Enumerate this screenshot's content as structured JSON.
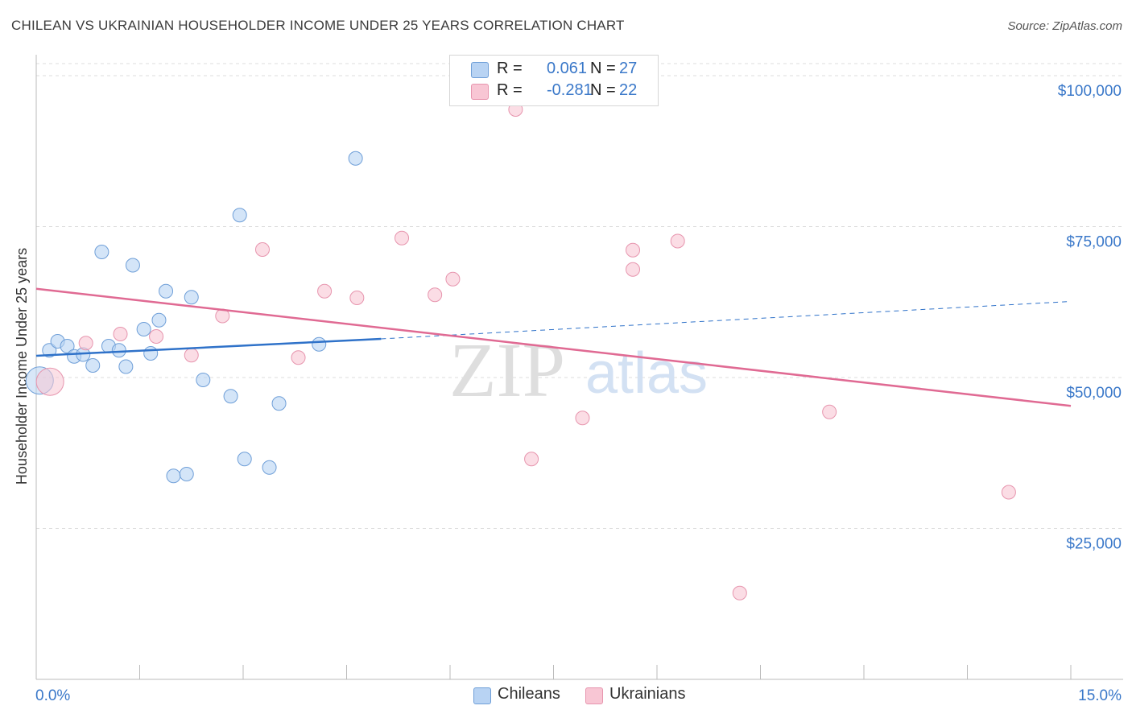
{
  "title": "CHILEAN VS UKRAINIAN HOUSEHOLDER INCOME UNDER 25 YEARS CORRELATION CHART",
  "source": "Source: ZipAtlas.com",
  "legend": {
    "rows": [
      {
        "r_label": "R =",
        "r_value": "0.061",
        "n_label": "N =",
        "n_value": "27"
      },
      {
        "r_label": "R =",
        "r_value": "-0.281",
        "n_label": "N =",
        "n_value": "22"
      }
    ]
  },
  "bottom_legend": {
    "chileans": "Chileans",
    "ukrainians": "Ukrainians"
  },
  "watermark": {
    "zip": "ZIP",
    "atlas": "atlas"
  },
  "colors": {
    "chilean_fill": "#b8d3f3",
    "chilean_stroke": "#6f9fd8",
    "chilean_line": "#2f72c9",
    "ukrainian_fill": "#f8c6d4",
    "ukrainian_stroke": "#e795ae",
    "ukrainian_line": "#e06a93",
    "grid": "#dcdcdc",
    "tick_label": "#3a78c9"
  },
  "chart_data": {
    "type": "scatter",
    "title": "CHILEAN VS UKRAINIAN HOUSEHOLDER INCOME UNDER 25 YEARS CORRELATION CHART",
    "xlabel": "",
    "ylabel": "Householder Income Under 25 years",
    "xlim": [
      0,
      15
    ],
    "ylim": [
      0,
      102000
    ],
    "x_tick_labels": [
      "0.0%",
      "15.0%"
    ],
    "y_ticks": [
      {
        "value": 25000,
        "label": "$25,000"
      },
      {
        "value": 50000,
        "label": "$50,000"
      },
      {
        "value": 75000,
        "label": "$75,000"
      },
      {
        "value": 100000,
        "label": "$100,000"
      }
    ],
    "series": [
      {
        "name": "Chileans",
        "r": 0.061,
        "n": 27,
        "points": [
          {
            "x": 0.05,
            "y": 49500,
            "big": true
          },
          {
            "x": 0.19,
            "y": 54500
          },
          {
            "x": 0.31,
            "y": 56000
          },
          {
            "x": 0.45,
            "y": 55200
          },
          {
            "x": 0.55,
            "y": 53500
          },
          {
            "x": 0.68,
            "y": 53800
          },
          {
            "x": 0.82,
            "y": 52000
          },
          {
            "x": 0.95,
            "y": 70800
          },
          {
            "x": 1.05,
            "y": 55200
          },
          {
            "x": 1.2,
            "y": 54500
          },
          {
            "x": 1.3,
            "y": 51800
          },
          {
            "x": 1.4,
            "y": 68600
          },
          {
            "x": 1.56,
            "y": 58000
          },
          {
            "x": 1.66,
            "y": 54000
          },
          {
            "x": 1.78,
            "y": 59500
          },
          {
            "x": 1.88,
            "y": 64300
          },
          {
            "x": 1.99,
            "y": 33700
          },
          {
            "x": 2.18,
            "y": 34000
          },
          {
            "x": 2.25,
            "y": 63300
          },
          {
            "x": 2.42,
            "y": 49600
          },
          {
            "x": 2.82,
            "y": 46900
          },
          {
            "x": 2.95,
            "y": 76900
          },
          {
            "x": 3.02,
            "y": 36500
          },
          {
            "x": 3.38,
            "y": 35100
          },
          {
            "x": 3.52,
            "y": 45700
          },
          {
            "x": 4.1,
            "y": 55500
          },
          {
            "x": 4.63,
            "y": 86300
          }
        ],
        "trend": {
          "x1": 0,
          "y1": 53600,
          "x2": 5.0,
          "y2": 56400,
          "dash_x2": 15,
          "dash_y2": 62600
        }
      },
      {
        "name": "Ukrainians",
        "r": -0.281,
        "n": 22,
        "points": [
          {
            "x": 0.2,
            "y": 49300,
            "big": true
          },
          {
            "x": 0.72,
            "y": 55700
          },
          {
            "x": 1.22,
            "y": 57200
          },
          {
            "x": 1.74,
            "y": 56800
          },
          {
            "x": 2.25,
            "y": 53700
          },
          {
            "x": 2.7,
            "y": 60200
          },
          {
            "x": 3.28,
            "y": 71200
          },
          {
            "x": 3.8,
            "y": 53300
          },
          {
            "x": 4.18,
            "y": 64300
          },
          {
            "x": 4.65,
            "y": 63200
          },
          {
            "x": 5.3,
            "y": 73100
          },
          {
            "x": 5.78,
            "y": 63700
          },
          {
            "x": 6.04,
            "y": 66300
          },
          {
            "x": 6.95,
            "y": 94400
          },
          {
            "x": 7.18,
            "y": 36500
          },
          {
            "x": 7.92,
            "y": 43300
          },
          {
            "x": 8.65,
            "y": 71100
          },
          {
            "x": 8.65,
            "y": 67900
          },
          {
            "x": 9.3,
            "y": 72600
          },
          {
            "x": 10.2,
            "y": 14300
          },
          {
            "x": 11.5,
            "y": 44300
          },
          {
            "x": 14.1,
            "y": 31000
          }
        ],
        "trend": {
          "x1": 0,
          "y1": 64700,
          "x2": 15,
          "y2": 45300
        }
      }
    ]
  }
}
